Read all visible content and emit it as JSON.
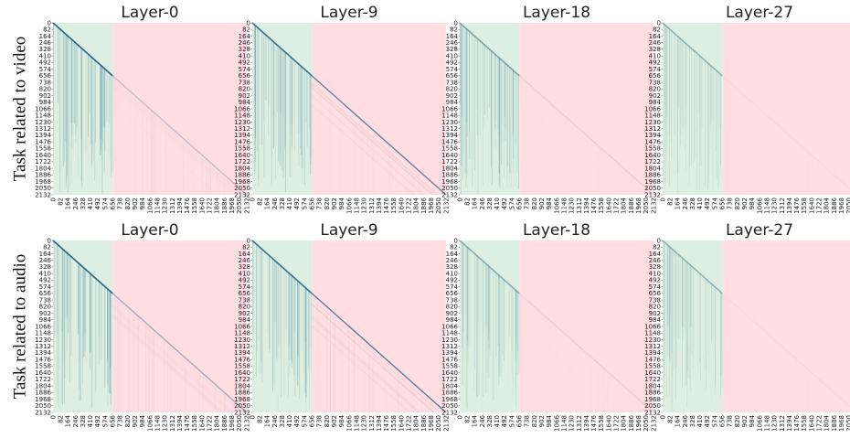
{
  "row_labels": [
    "Task related to video",
    "Task related to audio"
  ],
  "tick_labels": [
    "0",
    "82",
    "164",
    "246",
    "328",
    "410",
    "492",
    "574",
    "656",
    "738",
    "820",
    "902",
    "984",
    "1066",
    "1148",
    "1230",
    "1312",
    "1394",
    "1476",
    "1558",
    "1640",
    "1722",
    "1804",
    "1886",
    "1968",
    "2050",
    "2132"
  ],
  "colors": {
    "video_region": "#dcefe2",
    "audio_region": "#ffdde3",
    "attention": "#1f5e7e",
    "text": "#222222"
  },
  "chart_data": [
    {
      "type": "heatmap",
      "row": "Task related to video",
      "title": "Layer-0",
      "axis_range": [
        0,
        2132
      ],
      "video_token_range": [
        0,
        656
      ],
      "audio_token_range": [
        656,
        2132
      ],
      "pattern": {
        "diagonal": 0.95,
        "video_columns": 0.75,
        "audio_columns": 0.12,
        "audio_diagonal": 0.25
      }
    },
    {
      "type": "heatmap",
      "row": "Task related to video",
      "title": "Layer-9",
      "axis_range": [
        0,
        2132
      ],
      "video_token_range": [
        0,
        656
      ],
      "audio_token_range": [
        656,
        2132
      ],
      "pattern": {
        "diagonal": 0.85,
        "video_columns": 0.65,
        "audio_columns": 0.1,
        "audio_diagonal": 0.7
      }
    },
    {
      "type": "heatmap",
      "row": "Task related to video",
      "title": "Layer-18",
      "axis_range": [
        0,
        2132
      ],
      "video_token_range": [
        0,
        656
      ],
      "audio_token_range": [
        656,
        2132
      ],
      "pattern": {
        "diagonal": 0.5,
        "video_columns": 0.55,
        "audio_columns": 0.04,
        "audio_diagonal": 0.1
      }
    },
    {
      "type": "heatmap",
      "row": "Task related to video",
      "title": "Layer-27",
      "axis_range": [
        0,
        2132
      ],
      "video_token_range": [
        0,
        656
      ],
      "audio_token_range": [
        656,
        2132
      ],
      "pattern": {
        "diagonal": 0.4,
        "video_columns": 0.35,
        "audio_columns": 0.02,
        "audio_diagonal": 0.04
      }
    },
    {
      "type": "heatmap",
      "row": "Task related to audio",
      "title": "Layer-0",
      "axis_range": [
        0,
        2132
      ],
      "video_token_range": [
        0,
        656
      ],
      "audio_token_range": [
        656,
        2132
      ],
      "pattern": {
        "diagonal": 0.95,
        "video_columns": 0.7,
        "audio_columns": 0.2,
        "audio_diagonal": 0.4
      }
    },
    {
      "type": "heatmap",
      "row": "Task related to audio",
      "title": "Layer-9",
      "axis_range": [
        0,
        2132
      ],
      "video_token_range": [
        0,
        656
      ],
      "audio_token_range": [
        656,
        2132
      ],
      "pattern": {
        "diagonal": 0.85,
        "video_columns": 0.6,
        "audio_columns": 0.15,
        "audio_diagonal": 0.75
      }
    },
    {
      "type": "heatmap",
      "row": "Task related to audio",
      "title": "Layer-18",
      "axis_range": [
        0,
        2132
      ],
      "video_token_range": [
        0,
        656
      ],
      "audio_token_range": [
        656,
        2132
      ],
      "pattern": {
        "diagonal": 0.45,
        "video_columns": 0.45,
        "audio_columns": 0.05,
        "audio_diagonal": 0.1
      }
    },
    {
      "type": "heatmap",
      "row": "Task related to audio",
      "title": "Layer-27",
      "axis_range": [
        0,
        2132
      ],
      "video_token_range": [
        0,
        656
      ],
      "audio_token_range": [
        656,
        2132
      ],
      "pattern": {
        "diagonal": 0.4,
        "video_columns": 0.4,
        "audio_columns": 0.02,
        "audio_diagonal": 0.04
      }
    }
  ]
}
